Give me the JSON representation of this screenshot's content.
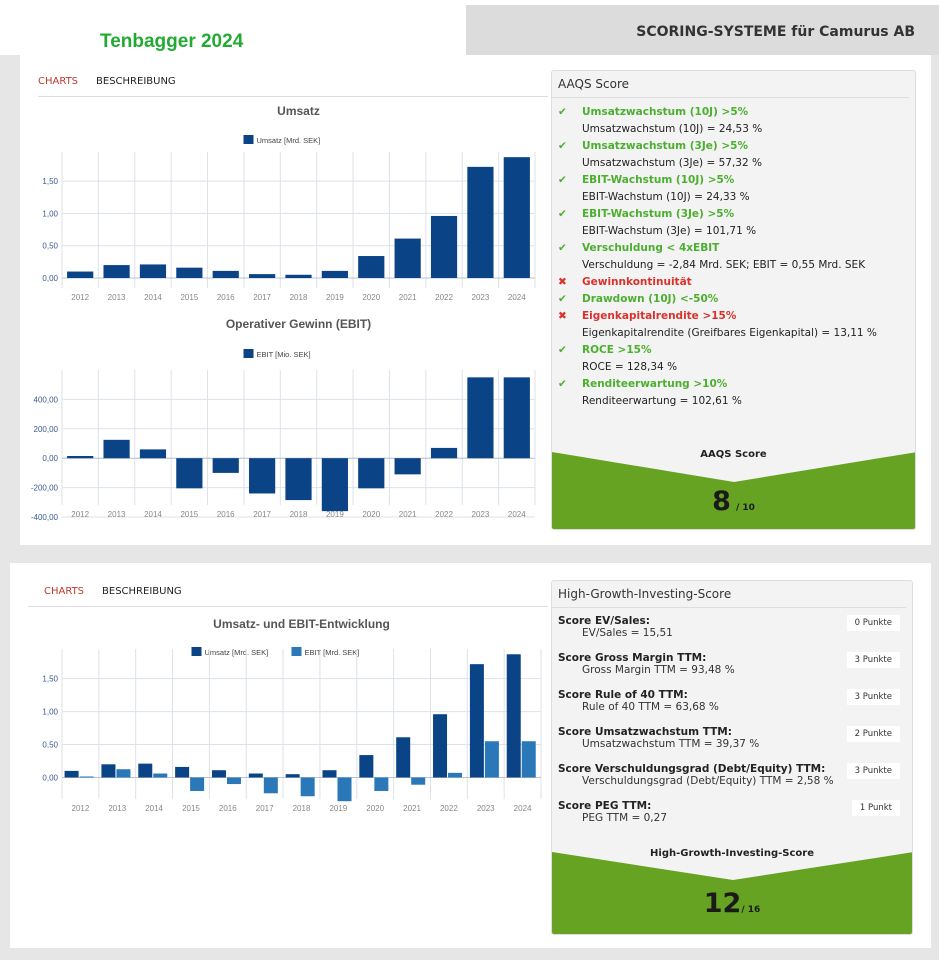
{
  "header": {
    "tag": "Tenbagger 2024",
    "title": "SCORING-SYSTEME für Camurus AB"
  },
  "tabs": {
    "charts": "CHARTS",
    "description": "BESCHREIBUNG"
  },
  "aaqs": {
    "title": "AAQS Score",
    "criteria": [
      {
        "status": "pass",
        "label": "Umsatzwachstum (10J) >5%",
        "value": "Umsatzwachstum (10J) = 24,53 %"
      },
      {
        "status": "pass",
        "label": "Umsatzwachstum (3Je) >5%",
        "value": "Umsatzwachstum (3Je) = 57,32 %"
      },
      {
        "status": "pass",
        "label": "EBIT-Wachstum (10J) >5%",
        "value": "EBIT-Wachstum (10J) = 24,33 %"
      },
      {
        "status": "pass",
        "label": "EBIT-Wachstum (3Je) >5%",
        "value": "EBIT-Wachstum (3Je) = 101,71 %"
      },
      {
        "status": "pass",
        "label": "Verschuldung < 4xEBIT",
        "value": "Verschuldung = -2,84 Mrd. SEK; EBIT = 0,55 Mrd. SEK"
      },
      {
        "status": "fail",
        "label": "Gewinnkontinuität",
        "value": null
      },
      {
        "status": "pass",
        "label": "Drawdown (10J) <-50%",
        "value": null
      },
      {
        "status": "fail",
        "label": "Eigenkapitalrendite >15%",
        "value": "Eigenkapitalrendite (Greifbares Eigenkapital) = 13,11 %"
      },
      {
        "status": "pass",
        "label": "ROCE >15%",
        "value": "ROCE = 128,34 %"
      },
      {
        "status": "pass",
        "label": "Renditeerwartung >10%",
        "value": "Renditeerwartung = 102,61 %"
      }
    ],
    "score_label": "AAQS Score",
    "score": "8",
    "max": "/ 10"
  },
  "hgi": {
    "title": "High-Growth-Investing-Score",
    "rows": [
      {
        "label": "Score EV/Sales:",
        "value": "EV/Sales = 15,51",
        "points": "0 Punkte"
      },
      {
        "label": "Score Gross Margin TTM:",
        "value": "Gross Margin TTM = 93,48 %",
        "points": "3 Punkte"
      },
      {
        "label": "Score Rule of 40 TTM:",
        "value": "Rule of 40 TTM = 63,68 %",
        "points": "3 Punkte"
      },
      {
        "label": "Score Umsatzwachstum TTM:",
        "value": "Umsatzwachstum TTM = 39,37 %",
        "points": "2 Punkte"
      },
      {
        "label": "Score Verschuldungsgrad (Debt/Equity) TTM:",
        "value": "Verschuldungsgrad (Debt/Equity) TTM = 2,58 %",
        "points": "3 Punkte"
      },
      {
        "label": "Score PEG TTM:",
        "value": "PEG TTM = 0,27",
        "points": "1 Punkt"
      }
    ],
    "score_label": "High-Growth-Investing-Score",
    "score": "12",
    "max": "/ 16"
  },
  "colors": {
    "dark": "#0b4387",
    "light": "#2a78b8",
    "green": "#66a322"
  },
  "chart_data": [
    {
      "type": "bar",
      "title": "Umsatz",
      "categories": [
        "2012",
        "2013",
        "2014",
        "2015",
        "2016",
        "2017",
        "2018",
        "2019",
        "2020",
        "2021",
        "2022",
        "2023",
        "2024"
      ],
      "series": [
        {
          "name": "Umsatz [Mrd. SEK]",
          "values": [
            0.1,
            0.2,
            0.21,
            0.16,
            0.11,
            0.06,
            0.05,
            0.11,
            0.34,
            0.61,
            0.96,
            1.72,
            1.87
          ]
        }
      ],
      "yticks": [
        "0,00",
        "0,50",
        "1,00",
        "1,50"
      ],
      "ytick_values": [
        0,
        0.5,
        1,
        1.5
      ],
      "ylim": [
        0,
        1.95
      ]
    },
    {
      "type": "bar",
      "title": "Operativer Gewinn (EBIT)",
      "categories": [
        "2012",
        "2013",
        "2014",
        "2015",
        "2016",
        "2017",
        "2018",
        "2019",
        "2020",
        "2021",
        "2022",
        "2023",
        "2024"
      ],
      "series": [
        {
          "name": "EBIT [Mio. SEK]",
          "values": [
            15,
            125,
            60,
            -205,
            -100,
            -240,
            -285,
            -360,
            -205,
            -110,
            70,
            550,
            550
          ]
        }
      ],
      "yticks": [
        "-400,00",
        "-200,00",
        "0,00",
        "200,00",
        "400,00"
      ],
      "ytick_values": [
        -400,
        -200,
        0,
        200,
        400
      ],
      "ylim": [
        -400,
        600
      ]
    },
    {
      "type": "bar",
      "title": "Umsatz- und EBIT-Entwicklung",
      "categories": [
        "2012",
        "2013",
        "2014",
        "2015",
        "2016",
        "2017",
        "2018",
        "2019",
        "2020",
        "2021",
        "2022",
        "2023",
        "2024"
      ],
      "series": [
        {
          "name": "Umsatz [Mrd. SEK]",
          "values": [
            0.1,
            0.2,
            0.21,
            0.16,
            0.11,
            0.06,
            0.05,
            0.11,
            0.34,
            0.61,
            0.96,
            1.72,
            1.87
          ]
        },
        {
          "name": "EBIT [Mrd. SEK]",
          "values": [
            0.015,
            0.125,
            0.06,
            -0.205,
            -0.1,
            -0.24,
            -0.285,
            -0.36,
            -0.205,
            -0.11,
            0.07,
            0.55,
            0.55
          ]
        }
      ],
      "yticks": [
        "0,00",
        "0,50",
        "1,00",
        "1,50"
      ],
      "ytick_values": [
        0,
        0.5,
        1,
        1.5
      ],
      "ylim": [
        -0.6,
        1.95
      ]
    }
  ]
}
